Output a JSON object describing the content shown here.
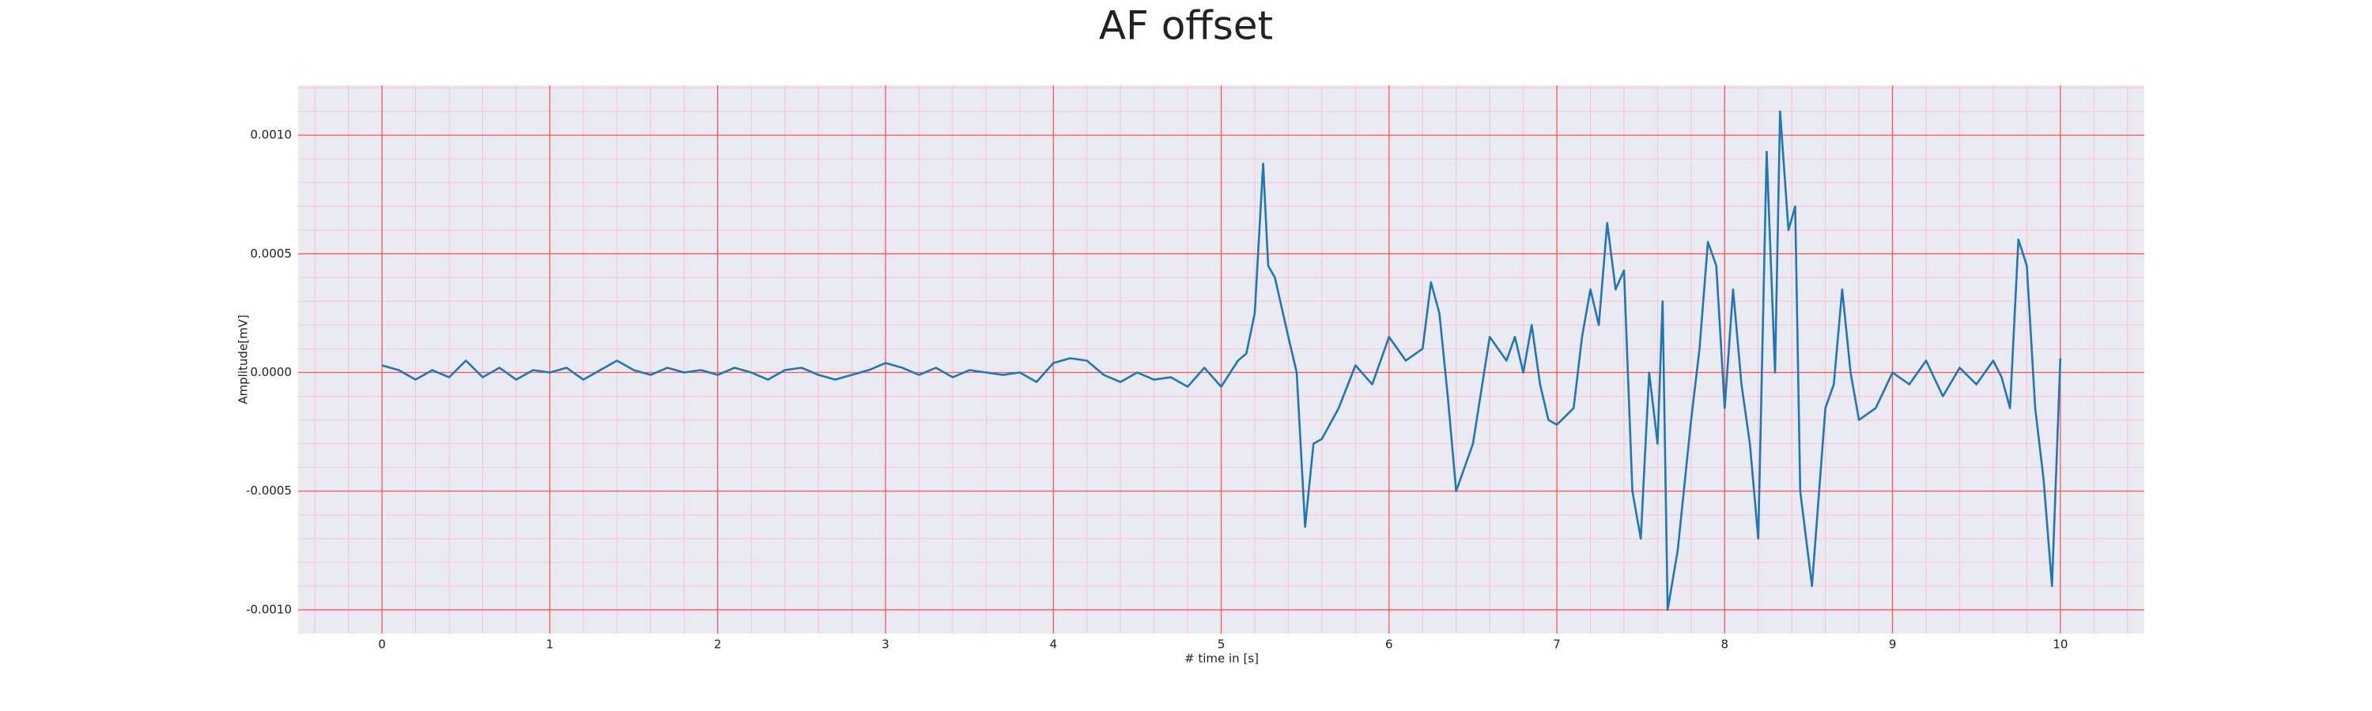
{
  "chart_data": {
    "type": "line",
    "title": "AF offset",
    "xlabel": "# time in [s]",
    "ylabel": "Amplitude[mV]",
    "color": "#1f77b4",
    "grid": true,
    "grid_color": "#ff5555",
    "minor_grid_color": "#f7c3cf",
    "background": "#eaeaf2",
    "xlim": [
      -0.5,
      10.5
    ],
    "ylim": [
      -0.0011,
      0.00121
    ],
    "xticks": [
      0,
      1,
      2,
      3,
      4,
      5,
      6,
      7,
      8,
      9,
      10
    ],
    "yticks": [
      {
        "value": -0.001,
        "label": "-0.0010"
      },
      {
        "value": -0.0005,
        "label": "-0.0005"
      },
      {
        "value": 0,
        "label": "0.0000"
      },
      {
        "value": 0.0005,
        "label": "0.0005"
      },
      {
        "value": 0.001,
        "label": "0.0010"
      }
    ],
    "xminorticks": [
      -0.4,
      -0.2,
      0.2,
      0.4,
      0.6,
      0.8,
      1.2,
      1.4,
      1.6,
      1.8,
      2.2,
      2.4,
      2.6,
      2.8,
      3.2,
      3.4,
      3.6,
      3.8,
      4.2,
      4.4,
      4.6,
      4.8,
      5.2,
      5.4,
      5.6,
      5.8,
      6.2,
      6.4,
      6.6,
      6.8,
      7.2,
      7.4,
      7.6,
      7.8,
      8.2,
      8.4,
      8.6,
      8.8,
      9.2,
      9.4,
      9.6,
      9.8,
      10.2,
      10.4
    ],
    "yminorticks": [
      -0.0009,
      -0.0008,
      -0.0007,
      -0.0006,
      -0.0004,
      -0.0003,
      -0.0002,
      -0.0001,
      0.0001,
      0.0002,
      0.0003,
      0.0004,
      0.0006,
      0.0007,
      0.0008,
      0.0009,
      0.0011,
      0.0012
    ],
    "x": [
      0,
      0.1,
      0.2,
      0.3,
      0.4,
      0.5,
      0.6,
      0.7,
      0.8,
      0.9,
      1.0,
      1.1,
      1.2,
      1.3,
      1.4,
      1.5,
      1.6,
      1.7,
      1.8,
      1.9,
      2.0,
      2.1,
      2.2,
      2.3,
      2.4,
      2.5,
      2.6,
      2.7,
      2.8,
      2.9,
      3.0,
      3.1,
      3.2,
      3.3,
      3.4,
      3.5,
      3.6,
      3.7,
      3.8,
      3.9,
      4.0,
      4.1,
      4.2,
      4.3,
      4.4,
      4.5,
      4.6,
      4.7,
      4.8,
      4.9,
      5.0,
      5.1,
      5.15,
      5.2,
      5.25,
      5.28,
      5.32,
      5.4,
      5.45,
      5.5,
      5.55,
      5.6,
      5.7,
      5.8,
      5.9,
      6.0,
      6.1,
      6.2,
      6.25,
      6.3,
      6.35,
      6.4,
      6.5,
      6.6,
      6.7,
      6.75,
      6.8,
      6.85,
      6.9,
      6.95,
      7.0,
      7.1,
      7.15,
      7.2,
      7.25,
      7.3,
      7.35,
      7.4,
      7.45,
      7.5,
      7.55,
      7.6,
      7.63,
      7.66,
      7.72,
      7.8,
      7.85,
      7.9,
      7.95,
      8.0,
      8.05,
      8.1,
      8.15,
      8.2,
      8.25,
      8.3,
      8.33,
      8.38,
      8.42,
      8.45,
      8.52,
      8.6,
      8.65,
      8.7,
      8.75,
      8.8,
      8.9,
      9.0,
      9.1,
      9.2,
      9.3,
      9.4,
      9.5,
      9.6,
      9.65,
      9.7,
      9.75,
      9.8,
      9.85,
      9.9,
      9.95,
      10.0
    ],
    "values": [
      3e-05,
      1e-05,
      -3e-05,
      1e-05,
      -2e-05,
      5e-05,
      -2e-05,
      2e-05,
      -3e-05,
      1e-05,
      0,
      2e-05,
      -3e-05,
      1e-05,
      5e-05,
      1e-05,
      -1e-05,
      2e-05,
      0,
      1e-05,
      -1e-05,
      2e-05,
      0,
      -3e-05,
      1e-05,
      2e-05,
      -1e-05,
      -3e-05,
      -1e-05,
      1e-05,
      4e-05,
      2e-05,
      -1e-05,
      2e-05,
      -2e-05,
      1e-05,
      0,
      -1e-05,
      0,
      -4e-05,
      4e-05,
      6e-05,
      5e-05,
      -1e-05,
      -4e-05,
      0,
      -3e-05,
      -2e-05,
      -6e-05,
      2e-05,
      -6e-05,
      5e-05,
      8e-05,
      0.00025,
      0.00088,
      0.00045,
      0.0004,
      0.00015,
      0,
      -0.00065,
      -0.0003,
      -0.00028,
      -0.00015,
      3e-05,
      -5e-05,
      0.00015,
      5e-05,
      0.0001,
      0.00038,
      0.00025,
      -0.0001,
      -0.0005,
      -0.0003,
      0.00015,
      5e-05,
      0.00015,
      0,
      0.0002,
      -5e-05,
      -0.0002,
      -0.00022,
      -0.00015,
      0.00015,
      0.00035,
      0.0002,
      0.00063,
      0.00035,
      0.00043,
      -0.0005,
      -0.0007,
      0,
      -0.0003,
      0.0003,
      -0.001,
      -0.00075,
      -0.0002,
      0.0001,
      0.00055,
      0.00045,
      -0.00015,
      0.00035,
      -5e-05,
      -0.0003,
      -0.0007,
      0.00093,
      0,
      0.0011,
      0.0006,
      0.0007,
      -0.0005,
      -0.0009,
      -0.00015,
      -5e-05,
      0.00035,
      0,
      -0.0002,
      -0.00015,
      0,
      -5e-05,
      5e-05,
      -0.0001,
      2e-05,
      -5e-05,
      5e-05,
      -2e-05,
      -0.00015,
      0.00056,
      0.00045,
      -0.00015,
      -0.00045,
      -0.0009,
      6e-05
    ]
  }
}
